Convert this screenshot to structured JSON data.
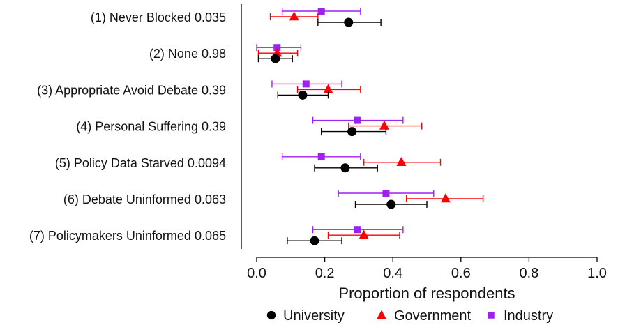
{
  "chart_data": {
    "type": "scatter",
    "xlabel": "Proportion of respondents",
    "xlim": [
      -0.04,
      1.04
    ],
    "xticks": [
      0.0,
      0.2,
      0.4,
      0.6,
      0.8,
      1.0
    ],
    "xtick_labels": [
      "0.0",
      "0.2",
      "0.4",
      "0.6",
      "0.8",
      "1.0"
    ],
    "categories": [
      "(1) Never Blocked 0.035",
      "(2) None 0.98",
      "(3) Appropriate Avoid Debate 0.39",
      "(4) Personal Suffering 0.39",
      "(5) Policy Data Starved 0.0094",
      "(6) Debate Uninformed 0.063",
      "(7) Policymakers Uninformed 0.065"
    ],
    "legend": {
      "placement": "bottom"
    },
    "series": [
      {
        "name": "University",
        "color": "#000000",
        "marker": "circle",
        "points": [
          {
            "value": 0.27,
            "low": 0.18,
            "high": 0.365
          },
          {
            "value": 0.055,
            "low": 0.005,
            "high": 0.105
          },
          {
            "value": 0.135,
            "low": 0.062,
            "high": 0.21
          },
          {
            "value": 0.28,
            "low": 0.19,
            "high": 0.38
          },
          {
            "value": 0.26,
            "low": 0.17,
            "high": 0.355
          },
          {
            "value": 0.395,
            "low": 0.29,
            "high": 0.5
          },
          {
            "value": 0.17,
            "low": 0.09,
            "high": 0.25
          }
        ]
      },
      {
        "name": "Government",
        "color": "#ff0000",
        "marker": "triangle",
        "points": [
          {
            "value": 0.11,
            "low": 0.04,
            "high": 0.18
          },
          {
            "value": 0.06,
            "low": 0.005,
            "high": 0.12
          },
          {
            "value": 0.21,
            "low": 0.12,
            "high": 0.305
          },
          {
            "value": 0.375,
            "low": 0.27,
            "high": 0.485
          },
          {
            "value": 0.425,
            "low": 0.315,
            "high": 0.54
          },
          {
            "value": 0.555,
            "low": 0.44,
            "high": 0.665
          },
          {
            "value": 0.315,
            "low": 0.21,
            "high": 0.42
          }
        ]
      },
      {
        "name": "Industry",
        "color": "#a020f0",
        "marker": "square",
        "points": [
          {
            "value": 0.19,
            "low": 0.075,
            "high": 0.305
          },
          {
            "value": 0.06,
            "low": 0.0,
            "high": 0.13
          },
          {
            "value": 0.145,
            "low": 0.045,
            "high": 0.25
          },
          {
            "value": 0.295,
            "low": 0.165,
            "high": 0.43
          },
          {
            "value": 0.19,
            "low": 0.075,
            "high": 0.305
          },
          {
            "value": 0.38,
            "low": 0.24,
            "high": 0.52
          },
          {
            "value": 0.295,
            "low": 0.165,
            "high": 0.43
          }
        ]
      }
    ]
  }
}
